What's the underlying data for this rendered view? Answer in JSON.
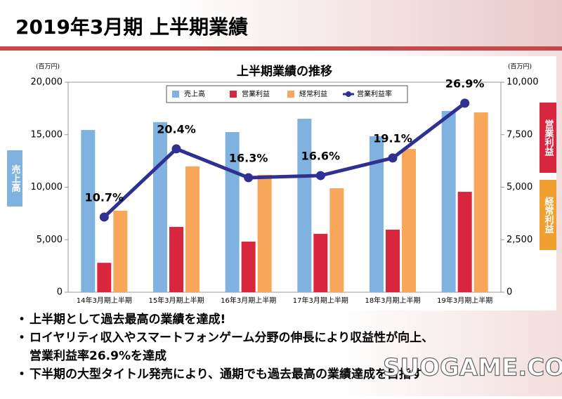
{
  "header": {
    "title": "2019年3月期 上半期業績"
  },
  "bullets": [
    [
      "上半期として過去最高の業績を達成!"
    ],
    [
      "ロイヤリティ収入やスマートフォンゲーム分野の伸長により収益性が向上、",
      "営業利益率26.9%を達成"
    ],
    [
      "下半期の大型タイトル発売により、通期でも過去最高の業績達成を目指す"
    ]
  ],
  "watermark": "SUOGAME.COM",
  "chart_data": {
    "type": "bar",
    "title": "上半期業績の推移",
    "y_unit": "(百万円)",
    "y2_unit": "(百万円)",
    "y_side_label": "売上高",
    "y2_side_labels": [
      {
        "text": "営業利益",
        "color": "#d7263d"
      },
      {
        "text": "経常利益",
        "color": "#f0a030"
      }
    ],
    "categories": [
      "14年3月期上半期",
      "15年3月期上半期",
      "16年3月期上半期",
      "17年3月期上半期",
      "18年3月期上半期",
      "19年3月期上半期"
    ],
    "series": [
      {
        "name": "売上高",
        "color": "#7fb2df",
        "values": [
          15450,
          16200,
          15250,
          16520,
          14850,
          17260
        ]
      },
      {
        "name": "営業利益",
        "color": "#d7263d",
        "axis": "y2",
        "values": [
          1400,
          3110,
          2410,
          2780,
          2980,
          4780
        ]
      },
      {
        "name": "経常利益",
        "color": "#f7a65a",
        "axis": "y2",
        "values": [
          3880,
          5990,
          5590,
          4950,
          6820,
          8560
        ]
      },
      {
        "name": "営業利益率",
        "color": "#2e3192",
        "type": "line",
        "values": [
          10.7,
          20.4,
          16.3,
          16.6,
          19.1,
          26.9
        ],
        "value_labels": [
          "10.7%",
          "20.4%",
          "16.3%",
          "16.6%",
          "19.1%",
          "26.9%"
        ]
      }
    ],
    "ylim": [
      0,
      20000
    ],
    "yticks": [
      0,
      {
        "value": 5000,
        "label": "5,000"
      },
      {
        "value": 10000,
        "label": "10,000"
      },
      {
        "value": 15000,
        "label": "15,000"
      },
      {
        "value": 20000,
        "label": "20,000"
      }
    ],
    "y2lim": [
      0,
      10000
    ],
    "y2ticks": [
      0,
      {
        "value": 2500,
        "label": "2,500"
      },
      {
        "value": 5000,
        "label": "5,000"
      },
      {
        "value": 7500,
        "label": "7,500"
      },
      {
        "value": 10000,
        "label": "10,000"
      }
    ]
  }
}
